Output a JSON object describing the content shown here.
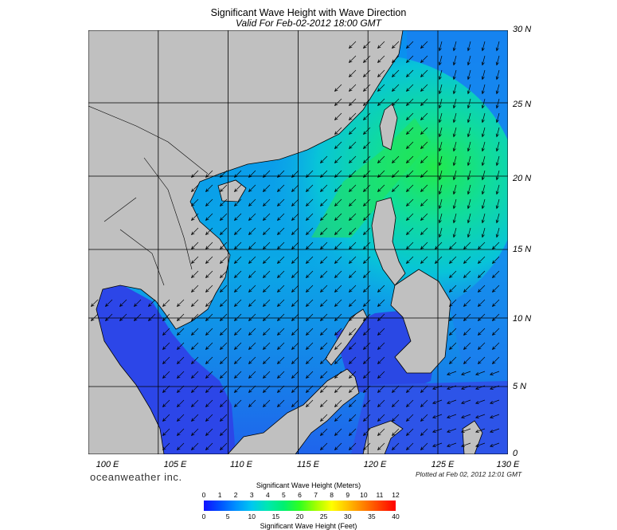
{
  "title": "Significant Wave Height with Wave Direction",
  "subtitle": "Valid For Feb-02-2012 18:00 GMT",
  "lat_labels": [
    "30 N",
    "25 N",
    "20 N",
    "15 N",
    "10 N",
    "5 N",
    "0"
  ],
  "lon_labels": [
    "100 E",
    "105 E",
    "110 E",
    "115 E",
    "120 E",
    "125 E",
    "130 E"
  ],
  "brand": "oceanweather inc.",
  "plotted_at": "Plotted at Feb 02, 2012 12:01 GMT",
  "colorbar": {
    "meters_title": "Significant Wave Height (Meters)",
    "feet_title": "Significant Wave Height (Feet)",
    "meters_ticks": [
      "0",
      "1",
      "2",
      "3",
      "4",
      "5",
      "6",
      "7",
      "8",
      "9",
      "10",
      "11",
      "12"
    ],
    "feet_ticks": [
      "0",
      "5",
      "10",
      "15",
      "20",
      "25",
      "30",
      "35",
      "40"
    ],
    "stops": [
      "#1010ff",
      "#0050ff",
      "#0090ff",
      "#00c8f0",
      "#00e8b0",
      "#00f070",
      "#30ff20",
      "#a0ff00",
      "#ffff00",
      "#ffc000",
      "#ff8000",
      "#ff4000",
      "#ff0000"
    ]
  },
  "colors": {
    "land": "#c0c0c0",
    "sea_low": "#2a4ce6",
    "sea_mid": "#00c8e8",
    "sea_high": "#20e860"
  }
}
